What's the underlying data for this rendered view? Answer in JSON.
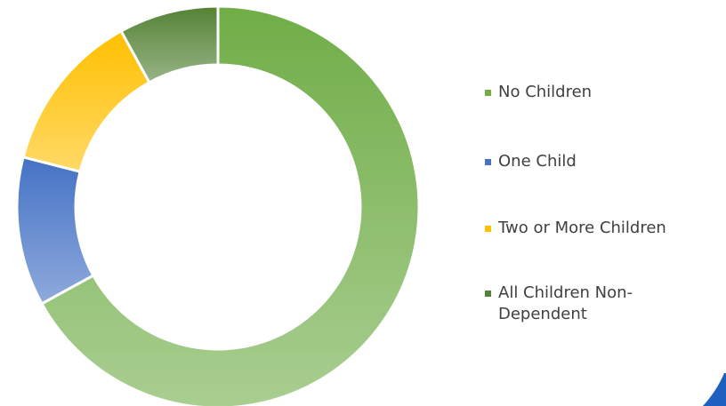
{
  "chart_data": {
    "type": "pie",
    "variant": "doughnut",
    "categories": [
      "No Children",
      "One Child",
      "Two or More Children",
      "All Children Non-Dependent"
    ],
    "values": [
      67,
      12,
      13,
      8
    ],
    "colors": [
      "#70ad47",
      "#4472c4",
      "#ffc000",
      "#548235"
    ],
    "legend_position": "right",
    "title": ""
  }
}
